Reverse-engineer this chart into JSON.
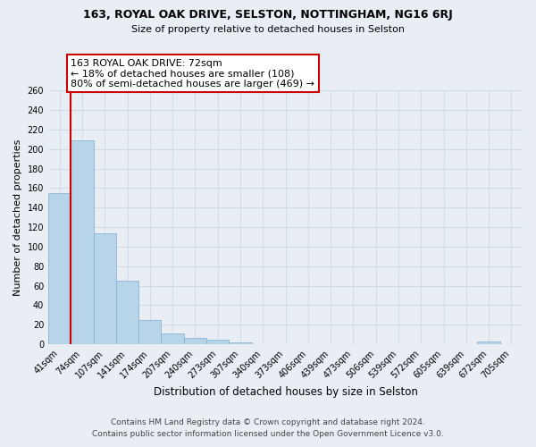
{
  "title": "163, ROYAL OAK DRIVE, SELSTON, NOTTINGHAM, NG16 6RJ",
  "subtitle": "Size of property relative to detached houses in Selston",
  "xlabel": "Distribution of detached houses by size in Selston",
  "ylabel": "Number of detached properties",
  "bar_labels": [
    "41sqm",
    "74sqm",
    "107sqm",
    "141sqm",
    "174sqm",
    "207sqm",
    "240sqm",
    "273sqm",
    "307sqm",
    "340sqm",
    "373sqm",
    "406sqm",
    "439sqm",
    "473sqm",
    "506sqm",
    "539sqm",
    "572sqm",
    "605sqm",
    "639sqm",
    "672sqm",
    "705sqm"
  ],
  "bar_values": [
    155,
    209,
    114,
    65,
    25,
    11,
    7,
    5,
    2,
    0,
    0,
    0,
    0,
    0,
    0,
    0,
    0,
    0,
    0,
    3,
    0
  ],
  "bar_color": "#b8d4e8",
  "bar_edge_color": "#8ab4d4",
  "ylim": [
    0,
    260
  ],
  "yticks": [
    0,
    20,
    40,
    60,
    80,
    100,
    120,
    140,
    160,
    180,
    200,
    220,
    240,
    260
  ],
  "annotation_title": "163 ROYAL OAK DRIVE: 72sqm",
  "annotation_line1": "← 18% of detached houses are smaller (108)",
  "annotation_line2": "80% of semi-detached houses are larger (469) →",
  "red_line_color": "#cc0000",
  "annotation_box_color": "#ffffff",
  "annotation_box_edge": "#cc0000",
  "footer_line1": "Contains HM Land Registry data © Crown copyright and database right 2024.",
  "footer_line2": "Contains public sector information licensed under the Open Government Licence v3.0.",
  "background_color": "#e8eef4",
  "grid_color": "#d0dce8"
}
